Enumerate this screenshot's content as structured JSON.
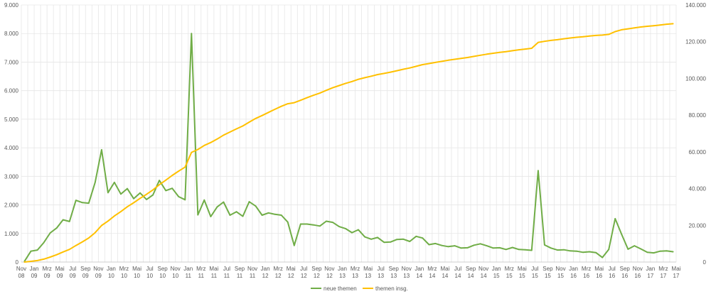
{
  "chart_data": {
    "type": "line",
    "title": "",
    "xlabel": "",
    "ylabel": "",
    "y_left_ticks": [
      "0",
      "1.000",
      "2.000",
      "3.000",
      "4.000",
      "5.000",
      "6.000",
      "7.000",
      "8.000",
      "9.000"
    ],
    "y_right_ticks": [
      "0",
      "20.000",
      "40.000",
      "60.000",
      "80.000",
      "100.000",
      "120.000",
      "140.000"
    ],
    "ylim_left": [
      0,
      9000
    ],
    "ylim_right": [
      0,
      140000
    ],
    "grid": true,
    "legend_position": "bottom",
    "x_tick_labels": [
      {
        "m": "Nov",
        "y": "08"
      },
      {
        "m": "Jan",
        "y": "09"
      },
      {
        "m": "Mrz",
        "y": "09"
      },
      {
        "m": "Mai",
        "y": "09"
      },
      {
        "m": "Jul",
        "y": "09"
      },
      {
        "m": "Sep",
        "y": "09"
      },
      {
        "m": "Nov",
        "y": "09"
      },
      {
        "m": "Jan",
        "y": "10"
      },
      {
        "m": "Mrz",
        "y": "10"
      },
      {
        "m": "Mai",
        "y": "10"
      },
      {
        "m": "Jul",
        "y": "10"
      },
      {
        "m": "Sep",
        "y": "10"
      },
      {
        "m": "Nov",
        "y": "10"
      },
      {
        "m": "Jan",
        "y": "11"
      },
      {
        "m": "Mrz",
        "y": "11"
      },
      {
        "m": "Mai",
        "y": "11"
      },
      {
        "m": "Jul",
        "y": "11"
      },
      {
        "m": "Sep",
        "y": "11"
      },
      {
        "m": "Nov",
        "y": "11"
      },
      {
        "m": "Jan",
        "y": "12"
      },
      {
        "m": "Mrz",
        "y": "12"
      },
      {
        "m": "Mai",
        "y": "12"
      },
      {
        "m": "Jul",
        "y": "12"
      },
      {
        "m": "Sep",
        "y": "12"
      },
      {
        "m": "Nov",
        "y": "12"
      },
      {
        "m": "Jan",
        "y": "13"
      },
      {
        "m": "Mrz",
        "y": "13"
      },
      {
        "m": "Mai",
        "y": "13"
      },
      {
        "m": "Jul",
        "y": "13"
      },
      {
        "m": "Sep",
        "y": "13"
      },
      {
        "m": "Nov",
        "y": "13"
      },
      {
        "m": "Jan",
        "y": "14"
      },
      {
        "m": "Mrz",
        "y": "14"
      },
      {
        "m": "Mai",
        "y": "14"
      },
      {
        "m": "Jul",
        "y": "14"
      },
      {
        "m": "Sep",
        "y": "14"
      },
      {
        "m": "Nov",
        "y": "14"
      },
      {
        "m": "Jan",
        "y": "15"
      },
      {
        "m": "Mrz",
        "y": "15"
      },
      {
        "m": "Mai",
        "y": "15"
      },
      {
        "m": "Jul",
        "y": "15"
      },
      {
        "m": "Sep",
        "y": "15"
      },
      {
        "m": "Nov",
        "y": "15"
      },
      {
        "m": "Jan",
        "y": "16"
      },
      {
        "m": "Mrz",
        "y": "16"
      },
      {
        "m": "Mai",
        "y": "16"
      },
      {
        "m": "Jul",
        "y": "16"
      },
      {
        "m": "Sep",
        "y": "16"
      },
      {
        "m": "Nov",
        "y": "16"
      },
      {
        "m": "Jan",
        "y": "17"
      },
      {
        "m": "Mrz",
        "y": "17"
      },
      {
        "m": "Mai",
        "y": "17"
      }
    ],
    "months": [
      "Nov 08",
      "Dez 08",
      "Jan 09",
      "Feb 09",
      "Mrz 09",
      "Apr 09",
      "Mai 09",
      "Jun 09",
      "Jul 09",
      "Aug 09",
      "Sep 09",
      "Okt 09",
      "Nov 09",
      "Dez 09",
      "Jan 10",
      "Feb 10",
      "Mrz 10",
      "Apr 10",
      "Mai 10",
      "Jun 10",
      "Jul 10",
      "Aug 10",
      "Sep 10",
      "Okt 10",
      "Nov 10",
      "Dez 10",
      "Jan 11",
      "Feb 11",
      "Mrz 11",
      "Apr 11",
      "Mai 11",
      "Jun 11",
      "Jul 11",
      "Aug 11",
      "Sep 11",
      "Okt 11",
      "Nov 11",
      "Dez 11",
      "Jan 12",
      "Feb 12",
      "Mrz 12",
      "Apr 12",
      "Mai 12",
      "Jun 12",
      "Jul 12",
      "Aug 12",
      "Sep 12",
      "Okt 12",
      "Nov 12",
      "Dez 12",
      "Jan 13",
      "Feb 13",
      "Mrz 13",
      "Apr 13",
      "Mai 13",
      "Jun 13",
      "Jul 13",
      "Aug 13",
      "Sep 13",
      "Okt 13",
      "Nov 13",
      "Dez 13",
      "Jan 14",
      "Feb 14",
      "Mrz 14",
      "Apr 14",
      "Mai 14",
      "Jun 14",
      "Jul 14",
      "Aug 14",
      "Sep 14",
      "Okt 14",
      "Nov 14",
      "Dez 14",
      "Jan 15",
      "Feb 15",
      "Mrz 15",
      "Apr 15",
      "Mai 15",
      "Jun 15",
      "Jul 15",
      "Aug 15",
      "Sep 15",
      "Okt 15",
      "Nov 15",
      "Dez 15",
      "Jan 16",
      "Feb 16",
      "Mrz 16",
      "Apr 16",
      "Mai 16",
      "Jun 16",
      "Jul 16",
      "Aug 16",
      "Sep 16",
      "Okt 16",
      "Nov 16",
      "Dez 16",
      "Jan 17",
      "Feb 17",
      "Mrz 17",
      "Apr 17"
    ],
    "series": [
      {
        "name": "neue themen",
        "axis": "left",
        "color": "#70ad47",
        "values": [
          30,
          380,
          420,
          680,
          1020,
          1190,
          1480,
          1420,
          2160,
          2080,
          2060,
          2790,
          3930,
          2430,
          2790,
          2380,
          2570,
          2220,
          2420,
          2190,
          2350,
          2860,
          2500,
          2580,
          2290,
          2180,
          8000,
          1650,
          2170,
          1590,
          1930,
          2100,
          1640,
          1760,
          1600,
          2110,
          1960,
          1640,
          1720,
          1670,
          1640,
          1400,
          580,
          1330,
          1330,
          1300,
          1260,
          1430,
          1390,
          1240,
          1170,
          1030,
          1130,
          880,
          800,
          860,
          690,
          700,
          790,
          800,
          720,
          900,
          840,
          610,
          650,
          580,
          540,
          570,
          490,
          500,
          590,
          640,
          570,
          490,
          500,
          440,
          510,
          440,
          430,
          410,
          3200,
          600,
          490,
          420,
          430,
          390,
          380,
          340,
          360,
          330,
          160,
          440,
          1520,
          970,
          450,
          570,
          460,
          340,
          320,
          380,
          390,
          360
        ]
      },
      {
        "name": "themen insg.",
        "axis": "right",
        "color": "#ffc000",
        "values": [
          0,
          400,
          800,
          1600,
          2700,
          4000,
          5500,
          6900,
          9000,
          11000,
          13100,
          16000,
          19900,
          22300,
          25100,
          27500,
          30100,
          32300,
          34700,
          36900,
          39300,
          42100,
          44600,
          47200,
          49500,
          51700,
          59700,
          61300,
          63500,
          65100,
          67000,
          69100,
          70800,
          72500,
          74100,
          76200,
          78200,
          79800,
          81500,
          83200,
          84800,
          86200,
          86800,
          88100,
          89500,
          90800,
          92000,
          93500,
          94900,
          96100,
          97300,
          98300,
          99500,
          100400,
          101200,
          102100,
          102700,
          103400,
          104200,
          105000,
          105700,
          106600,
          107500,
          108100,
          108700,
          109300,
          109900,
          110400,
          110900,
          111400,
          112000,
          112600,
          113200,
          113700,
          114200,
          114600,
          115100,
          115600,
          116000,
          116400,
          119600,
          120200,
          120700,
          121100,
          121600,
          122000,
          122400,
          122700,
          123100,
          123400,
          123600,
          124000,
          125500,
          126500,
          127000,
          127500,
          128000,
          128400,
          128700,
          129100,
          129500,
          129800
        ]
      }
    ]
  }
}
